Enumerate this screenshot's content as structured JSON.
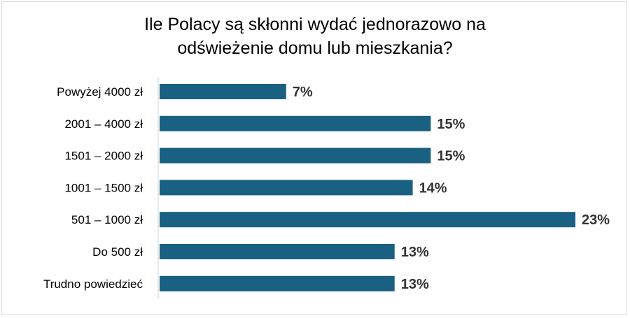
{
  "title_line1": "Ile Polacy są skłonni wydać jednorazowo na",
  "title_line2": "odświeżenie domu lub mieszkania?",
  "colors": {
    "bar": "#1a6082",
    "axis": "#d0d0d0",
    "label": "#333333"
  },
  "chart_data": {
    "type": "bar",
    "orientation": "horizontal",
    "title": "Ile Polacy są skłonni wydać jednorazowo na odświeżenie domu lub mieszkania?",
    "categories": [
      "Powyżej 4000 zł",
      "2001 – 4000 zł",
      "1501 – 2000 zł",
      "1001 – 1500 zł",
      "501 – 1000 zł",
      "Do 500 zł",
      "Trudno powiedzieć"
    ],
    "values": [
      7,
      15,
      15,
      14,
      23,
      13,
      13
    ],
    "value_labels": [
      "7%",
      "15%",
      "15%",
      "14%",
      "23%",
      "13%",
      "13%"
    ],
    "unit": "%",
    "xlim": [
      0,
      23
    ],
    "grid": false,
    "legend": "none"
  }
}
